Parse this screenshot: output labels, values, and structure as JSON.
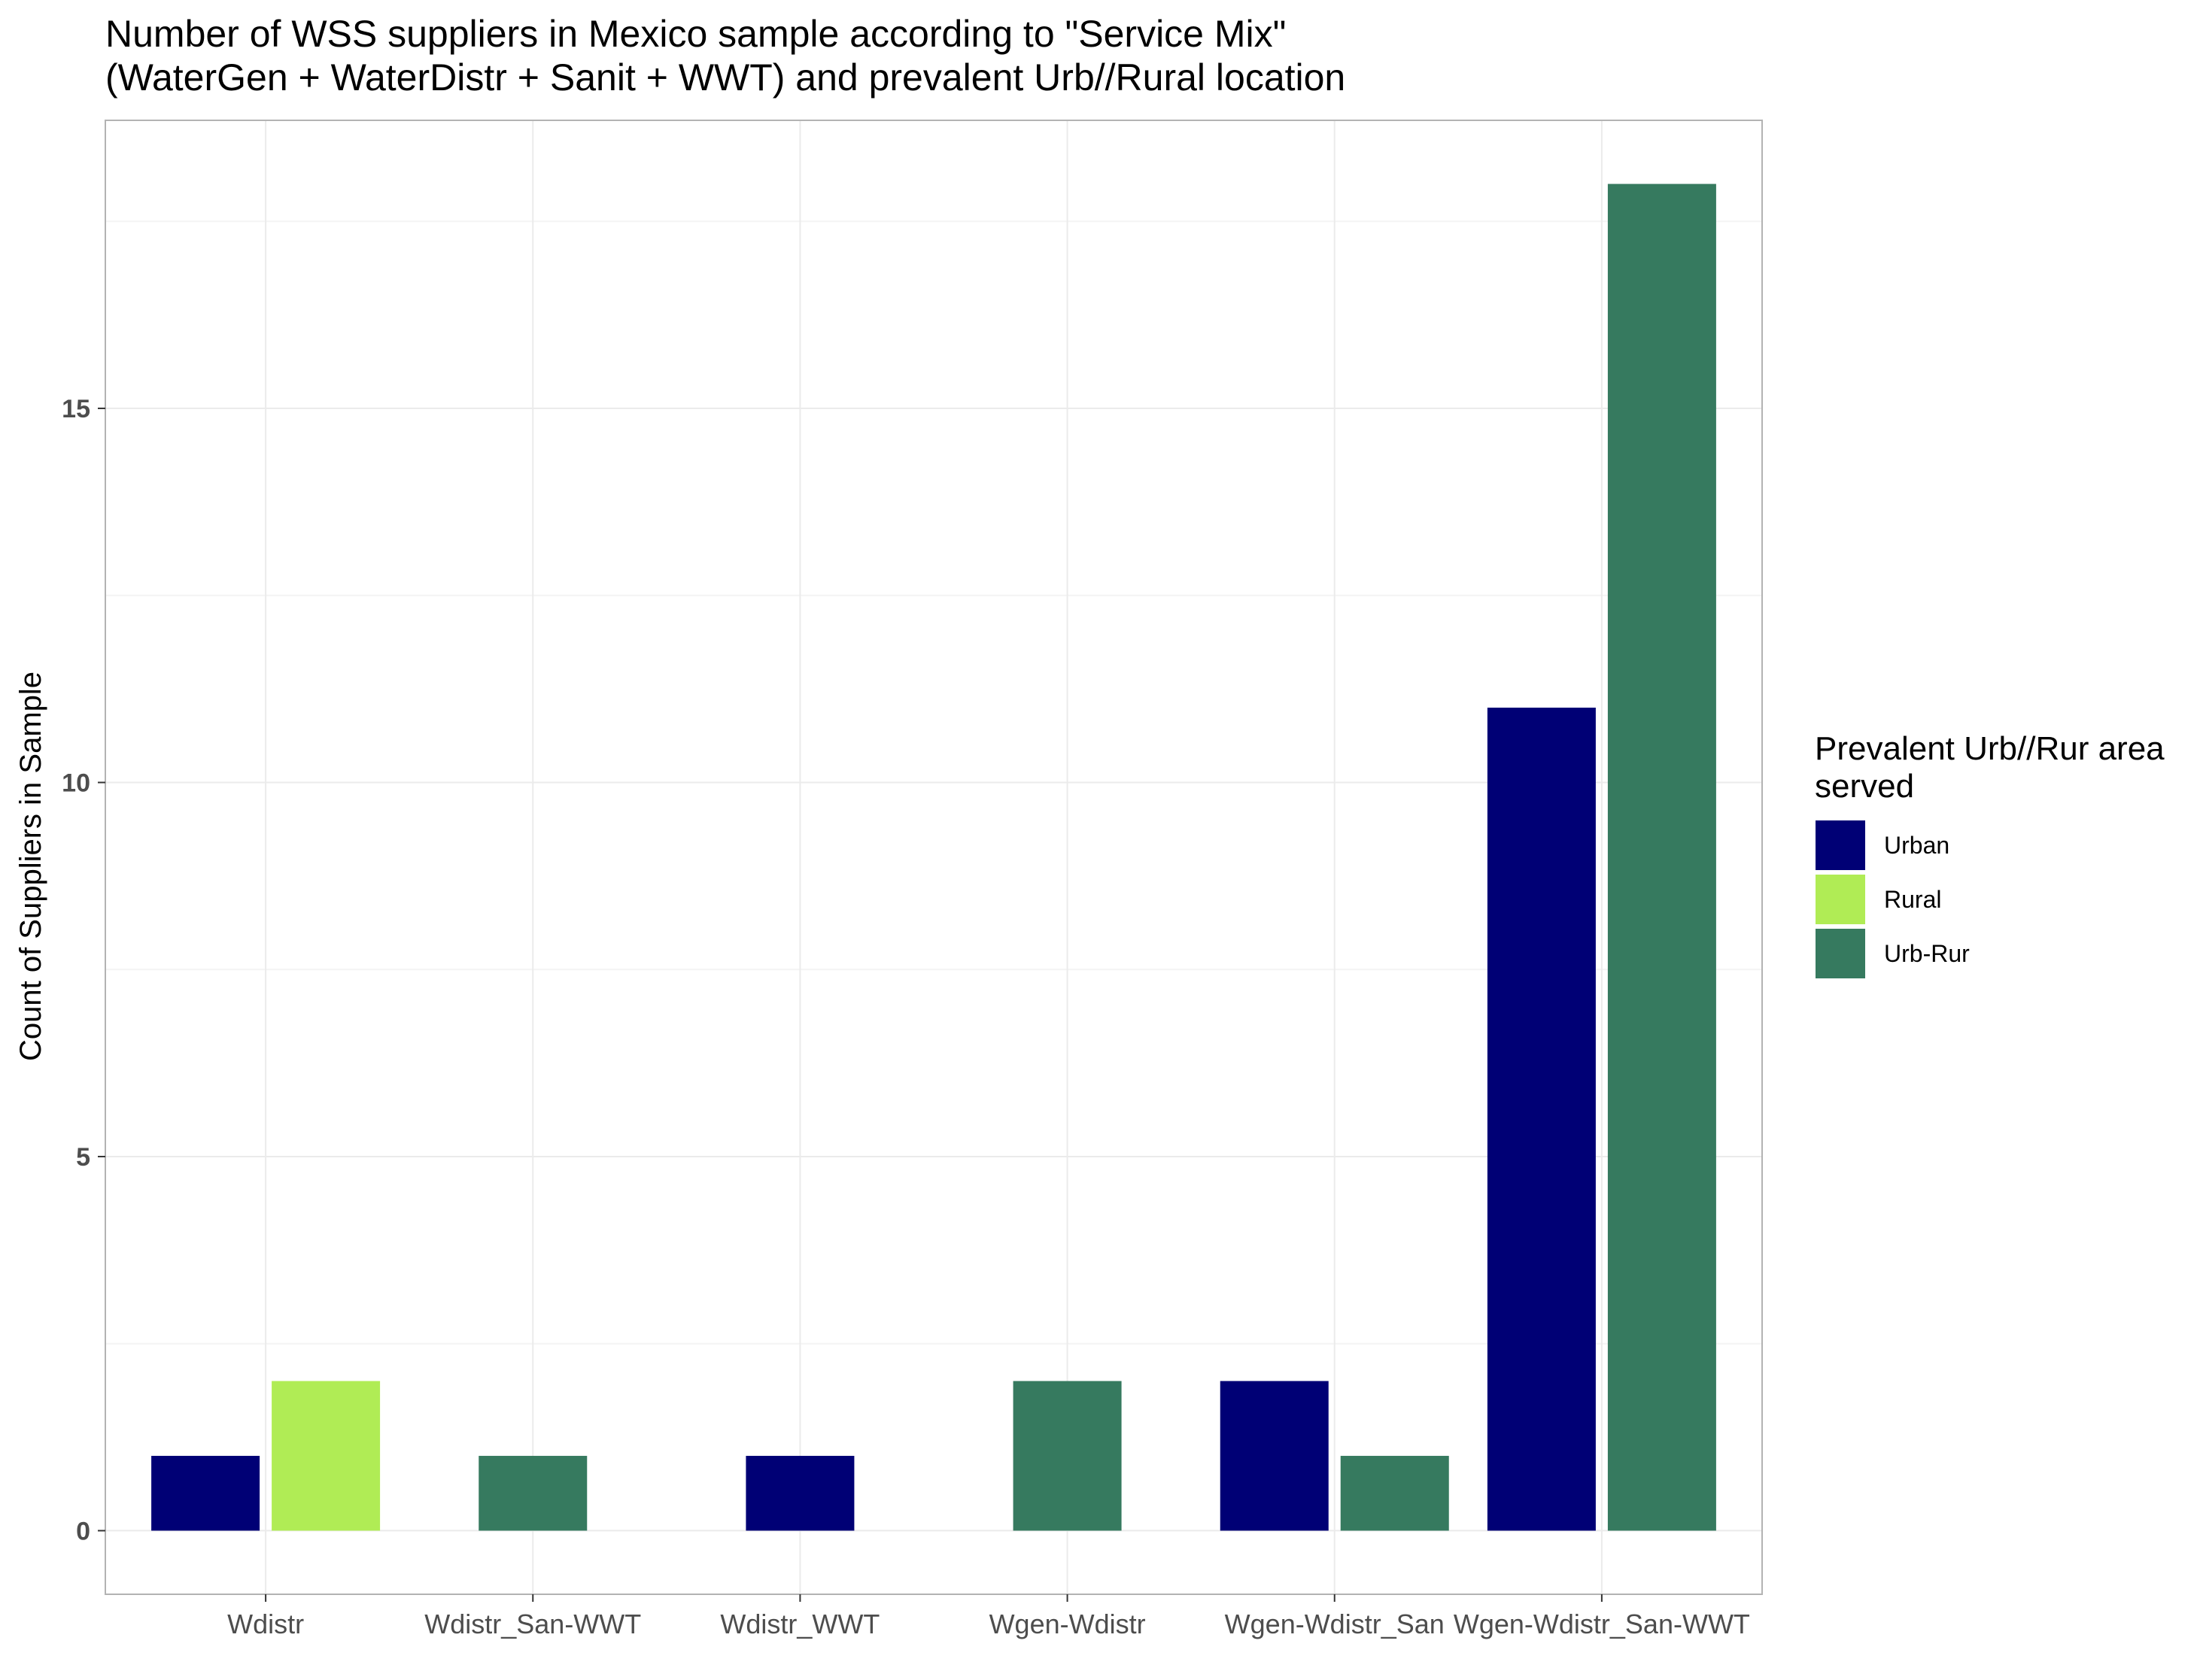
{
  "chart_data": {
    "type": "bar",
    "title": "Number of WSS suppliers in Mexico sample according to \"Service Mix\"",
    "subtitle": "(WaterGen + WaterDistr + Sanit + WWT) and prevalent Urb//Rural location",
    "xlabel": "",
    "ylabel": "Count of Suppliers in Sample",
    "ylim": [
      -0.85,
      18.85
    ],
    "yticks": [
      0,
      5,
      10,
      15
    ],
    "grid": true,
    "legend": {
      "title_line1": "Prevalent Urb//Rur area",
      "title_line2": "served",
      "position": "right"
    },
    "categories": [
      "Wdistr",
      "Wdistr_San-WWT",
      "Wdistr_WWT",
      "Wgen-Wdistr",
      "Wgen-Wdistr_San",
      "Wgen-Wdistr_San-WWT"
    ],
    "series": [
      {
        "name": "Urban",
        "color": "#000075",
        "values": [
          1,
          null,
          1,
          null,
          2,
          11
        ]
      },
      {
        "name": "Rural",
        "color": "#b0ec55",
        "values": [
          2,
          null,
          null,
          null,
          null,
          null
        ]
      },
      {
        "name": "Urb-Rur",
        "color": "#367a5f",
        "values": [
          null,
          1,
          null,
          2,
          1,
          18
        ]
      }
    ]
  }
}
